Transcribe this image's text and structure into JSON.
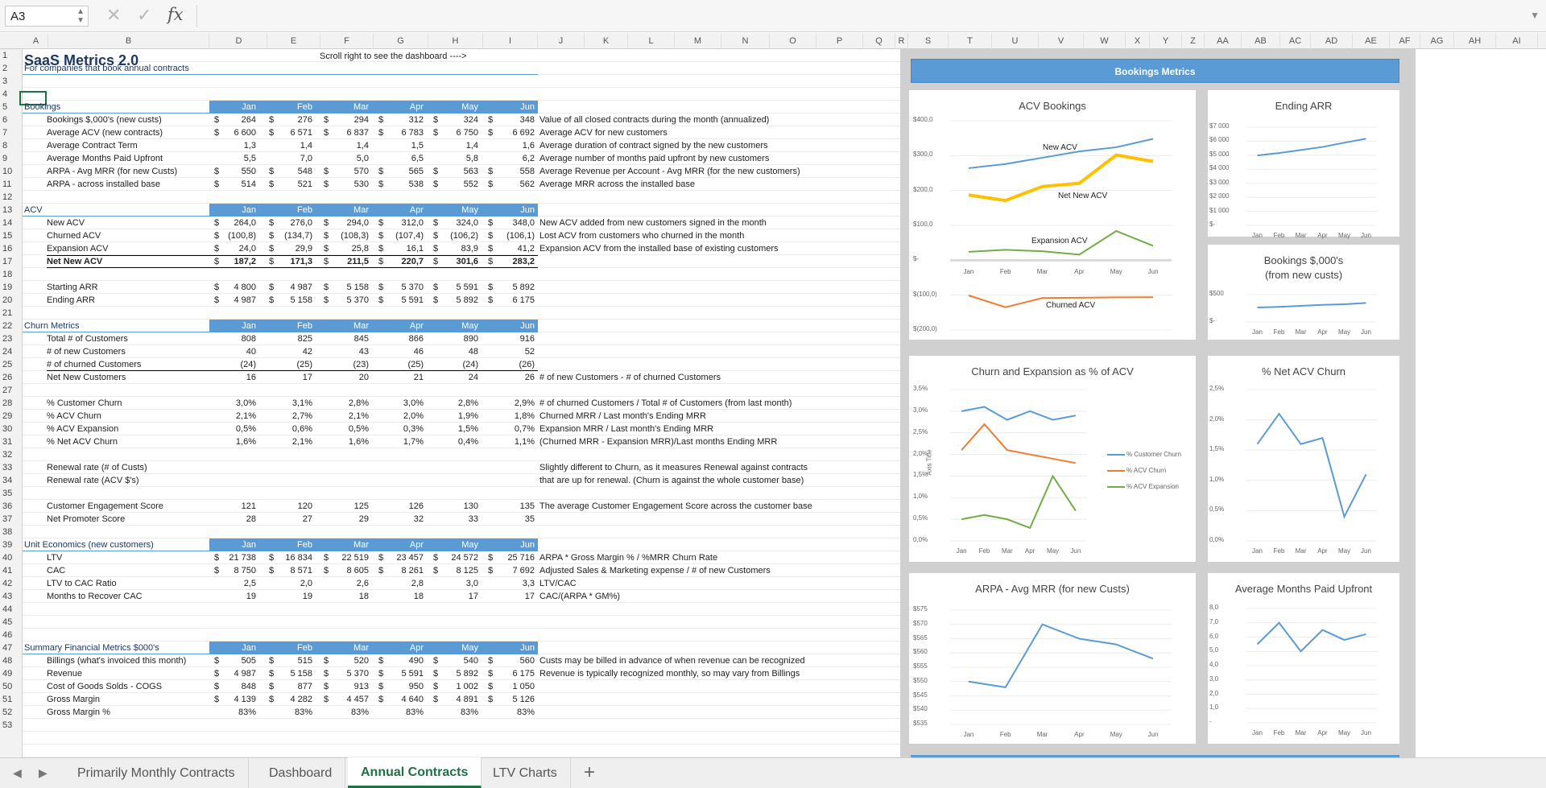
{
  "formula_bar": {
    "cell_ref": "A3",
    "fx_label": "fx",
    "formula": ""
  },
  "columns": [
    "A",
    "B",
    "D",
    "E",
    "F",
    "G",
    "H",
    "I",
    "J",
    "K",
    "L",
    "M",
    "N",
    "O",
    "P",
    "Q",
    "R",
    "S",
    "T",
    "U",
    "V",
    "W",
    "X",
    "Y",
    "Z",
    "AA",
    "AB",
    "AC",
    "AD",
    "AE",
    "AF",
    "AG",
    "AH",
    "AI"
  ],
  "rows": [
    "1",
    "2",
    "3",
    "4",
    "5",
    "6",
    "7",
    "8",
    "9",
    "10",
    "11",
    "12",
    "13",
    "14",
    "15",
    "16",
    "17",
    "18",
    "19",
    "20",
    "21",
    "22",
    "23",
    "24",
    "25",
    "26",
    "27",
    "28",
    "29",
    "30",
    "31",
    "32",
    "33",
    "34",
    "35",
    "36",
    "37",
    "38",
    "39",
    "40",
    "41",
    "42",
    "43",
    "44",
    "45",
    "46",
    "47",
    "48",
    "49",
    "50",
    "51",
    "52",
    "53"
  ],
  "sheet": {
    "title": "SaaS Metrics 2.0",
    "subtitle": "For companies that book annual contracts",
    "scroll_note": "Scroll right to see the dashboard ---->",
    "months": [
      "Jan",
      "Feb",
      "Mar",
      "Apr",
      "May",
      "Jun"
    ],
    "sections": [
      {
        "row": 5,
        "label": "Bookings",
        "items": [
          {
            "row": 6,
            "label": "Bookings $,000's (new custs)",
            "dollar": true,
            "values": [
              "264",
              "276",
              "294",
              "312",
              "324",
              "348"
            ],
            "note": "Value of all closed contracts during the month (annualized)"
          },
          {
            "row": 7,
            "label": "Average ACV (new contracts)",
            "dollar": true,
            "values": [
              "6 600",
              "6 571",
              "6 837",
              "6 783",
              "6 750",
              "6 692"
            ],
            "note": "Average ACV for new customers"
          },
          {
            "row": 8,
            "label": "Average Contract Term",
            "dollar": false,
            "values": [
              "1,3",
              "1,4",
              "1,4",
              "1,5",
              "1,4",
              "1,6"
            ],
            "note": "Average duration of contract signed by the new customers"
          },
          {
            "row": 9,
            "label": "Average Months Paid Upfront",
            "dollar": false,
            "values": [
              "5,5",
              "7,0",
              "5,0",
              "6,5",
              "5,8",
              "6,2"
            ],
            "note": "Average number of months paid upfront by new customers"
          },
          {
            "row": 10,
            "label": "ARPA - Avg MRR (for new Custs)",
            "dollar": true,
            "values": [
              "550",
              "548",
              "570",
              "565",
              "563",
              "558"
            ],
            "note": "Average Revenue per Account - Avg MRR (for the new customers)"
          },
          {
            "row": 11,
            "label": "ARPA - across installed base",
            "dollar": true,
            "values": [
              "514",
              "521",
              "530",
              "538",
              "552",
              "562"
            ],
            "note": "Average MRR across the installed base"
          }
        ]
      },
      {
        "row": 13,
        "label": "ACV",
        "items": [
          {
            "row": 14,
            "label": "New ACV",
            "dollar": true,
            "values": [
              "264,0",
              "276,0",
              "294,0",
              "312,0",
              "324,0",
              "348,0"
            ],
            "note": "New ACV added from new customers signed in the month"
          },
          {
            "row": 15,
            "label": "Churned ACV",
            "dollar": true,
            "values": [
              "(100,8)",
              "(134,7)",
              "(108,3)",
              "(107,4)",
              "(106,2)",
              "(106,1)"
            ],
            "note": "Lost ACV from customers who churned in the month"
          },
          {
            "row": 16,
            "label": "Expansion ACV",
            "dollar": true,
            "values": [
              "24,0",
              "29,9",
              "25,8",
              "16,1",
              "83,9",
              "41,2"
            ],
            "note": "Expansion ACV from the installed base of existing customers"
          },
          {
            "row": 17,
            "label": "Net New ACV",
            "dollar": true,
            "bold": true,
            "values": [
              "187,2",
              "171,3",
              "211,5",
              "220,7",
              "301,6",
              "283,2"
            ],
            "note": ""
          },
          {
            "row": 19,
            "label": "Starting ARR",
            "dollar": true,
            "values": [
              "4 800",
              "4 987",
              "5 158",
              "5 370",
              "5 591",
              "5 892"
            ],
            "note": ""
          },
          {
            "row": 20,
            "label": "Ending ARR",
            "dollar": true,
            "values": [
              "4 987",
              "5 158",
              "5 370",
              "5 591",
              "5 892",
              "6 175"
            ],
            "note": ""
          }
        ]
      },
      {
        "row": 22,
        "label": "Churn Metrics",
        "items": [
          {
            "row": 23,
            "label": "Total # of Customers",
            "dollar": false,
            "values": [
              "808",
              "825",
              "845",
              "866",
              "890",
              "916"
            ],
            "note": ""
          },
          {
            "row": 24,
            "label": "# of new Customers",
            "dollar": false,
            "values": [
              "40",
              "42",
              "43",
              "46",
              "48",
              "52"
            ],
            "note": ""
          },
          {
            "row": 25,
            "label": "# of churned Customers",
            "dollar": false,
            "values": [
              "(24)",
              "(25)",
              "(23)",
              "(25)",
              "(24)",
              "(26)"
            ],
            "note": ""
          },
          {
            "row": 26,
            "label": "Net New Customers",
            "dollar": false,
            "values": [
              "16",
              "17",
              "20",
              "21",
              "24",
              "26"
            ],
            "note": "# of new Customers - # of churned Customers"
          },
          {
            "row": 28,
            "label": "% Customer Churn",
            "dollar": false,
            "values": [
              "3,0%",
              "3,1%",
              "2,8%",
              "3,0%",
              "2,8%",
              "2,9%"
            ],
            "note": "# of churned Customers / Total # of Customers (from last month)"
          },
          {
            "row": 29,
            "label": "% ACV Churn",
            "dollar": false,
            "values": [
              "2,1%",
              "2,7%",
              "2,1%",
              "2,0%",
              "1,9%",
              "1,8%"
            ],
            "note": "Churned MRR / Last month's Ending MRR"
          },
          {
            "row": 30,
            "label": "% ACV Expansion",
            "dollar": false,
            "values": [
              "0,5%",
              "0,6%",
              "0,5%",
              "0,3%",
              "1,5%",
              "0,7%"
            ],
            "note": "Expansion MRR / Last month's Ending MRR"
          },
          {
            "row": 31,
            "label": "% Net ACV Churn",
            "dollar": false,
            "values": [
              "1,6%",
              "2,1%",
              "1,6%",
              "1,7%",
              "0,4%",
              "1,1%"
            ],
            "note": "(Churned MRR - Expansion MRR)/Last months Ending MRR"
          },
          {
            "row": 33,
            "label": "Renewal rate (# of Custs)",
            "dollar": false,
            "values": [
              "",
              "",
              "",
              "",
              "",
              ""
            ],
            "note": "Slightly different to Churn, as it measures Renewal against contracts"
          },
          {
            "row": 34,
            "label": "Renewal rate (ACV $'s)",
            "dollar": false,
            "values": [
              "",
              "",
              "",
              "",
              "",
              ""
            ],
            "note": "that are up for renewal. (Churn is against the whole customer base)"
          },
          {
            "row": 36,
            "label": "Customer Engagement Score",
            "dollar": false,
            "values": [
              "121",
              "120",
              "125",
              "126",
              "130",
              "135"
            ],
            "note": "The average Customer Engagement Score across the customer base"
          },
          {
            "row": 37,
            "label": "Net Promoter Score",
            "dollar": false,
            "values": [
              "28",
              "27",
              "29",
              "32",
              "33",
              "35"
            ],
            "note": ""
          }
        ]
      },
      {
        "row": 39,
        "label": "Unit Economics (new customers)",
        "items": [
          {
            "row": 40,
            "label": "LTV",
            "dollar": true,
            "values": [
              "21 738",
              "16 834",
              "22 519",
              "23 457",
              "24 572",
              "25 716"
            ],
            "note": "ARPA * Gross Margin % / %MRR Churn Rate"
          },
          {
            "row": 41,
            "label": "CAC",
            "dollar": true,
            "values": [
              "8 750",
              "8 571",
              "8 605",
              "8 261",
              "8 125",
              "7 692"
            ],
            "note": "Adjusted Sales & Marketing expense / # of new Customers"
          },
          {
            "row": 42,
            "label": "LTV to CAC Ratio",
            "dollar": false,
            "values": [
              "2,5",
              "2,0",
              "2,6",
              "2,8",
              "3,0",
              "3,3"
            ],
            "note": "LTV/CAC"
          },
          {
            "row": 43,
            "label": "Months to Recover CAC",
            "dollar": false,
            "values": [
              "19",
              "19",
              "18",
              "18",
              "17",
              "17"
            ],
            "note": "CAC/(ARPA * GM%)"
          }
        ]
      },
      {
        "row": 47,
        "label": "Summary Financial Metrics $000's",
        "items": [
          {
            "row": 48,
            "label": "Billings (what's invoiced this month)",
            "dollar": true,
            "values": [
              "505",
              "515",
              "520",
              "490",
              "540",
              "560"
            ],
            "note": "Custs may be billed in advance of when revenue can be recognized"
          },
          {
            "row": 49,
            "label": "Revenue",
            "dollar": true,
            "values": [
              "4 987",
              "5 158",
              "5 370",
              "5 591",
              "5 892",
              "6 175"
            ],
            "note": "Revenue is typically recognized monthly, so may vary from Billings"
          },
          {
            "row": 50,
            "label": "Cost of Goods Solds - COGS",
            "dollar": true,
            "values": [
              "848",
              "877",
              "913",
              "950",
              "1 002",
              "1 050"
            ],
            "note": ""
          },
          {
            "row": 51,
            "label": "Gross Margin",
            "dollar": true,
            "values": [
              "4 139",
              "4 282",
              "4 457",
              "4 640",
              "4 891",
              "5 126"
            ],
            "note": ""
          },
          {
            "row": 52,
            "label": "Gross Margin %",
            "dollar": false,
            "values": [
              "83%",
              "83%",
              "83%",
              "83%",
              "83%",
              "83%"
            ],
            "note": ""
          }
        ]
      }
    ]
  },
  "dashboard": {
    "header": "Bookings Metrics",
    "currency_symbol": "$"
  },
  "chart_data": [
    {
      "type": "line",
      "title": "ACV Bookings",
      "categories": [
        "Jan",
        "Feb",
        "Mar",
        "Apr",
        "May",
        "Jun"
      ],
      "series": [
        {
          "name": "New ACV",
          "values": [
            264,
            276,
            294,
            312,
            324,
            348
          ],
          "color": "#5b9bd5"
        },
        {
          "name": "Net New ACV",
          "values": [
            187.2,
            171.3,
            211.5,
            220.7,
            301.6,
            283.2
          ],
          "color": "#ffc000"
        },
        {
          "name": "Expansion ACV",
          "values": [
            24,
            29.9,
            25.8,
            16.1,
            83.9,
            41.2
          ],
          "color": "#70ad47"
        },
        {
          "name": "Churned ACV",
          "values": [
            -100.8,
            -134.7,
            -108.3,
            -107.4,
            -106.2,
            -106.1
          ],
          "color": "#ed7d31"
        }
      ],
      "ylim": [
        -200,
        400
      ],
      "yticks": [
        "$400,0",
        "$300,0",
        "$200,0",
        "$100,0",
        "$-",
        "$(100,0)",
        "$(200,0)"
      ]
    },
    {
      "type": "line",
      "title": "Ending ARR",
      "categories": [
        "Jan",
        "Feb",
        "Mar",
        "Apr",
        "May",
        "Jun"
      ],
      "series": [
        {
          "values": [
            4987,
            5158,
            5370,
            5591,
            5892,
            6175
          ],
          "color": "#5b9bd5"
        }
      ],
      "ylim": [
        0,
        7000
      ],
      "yticks": [
        "$7 000",
        "$6 000",
        "$5 000",
        "$4 000",
        "$3 000",
        "$2 000",
        "$1 000",
        "$-"
      ]
    },
    {
      "type": "line",
      "title": "Bookings $,000's",
      "subtitle": "(from new custs)",
      "categories": [
        "Jan",
        "Feb",
        "Mar",
        "Apr",
        "May",
        "Jun"
      ],
      "series": [
        {
          "values": [
            264,
            276,
            294,
            312,
            324,
            348
          ],
          "color": "#5b9bd5"
        }
      ],
      "ylim": [
        0,
        500
      ],
      "yticks": [
        "$500",
        "$-"
      ]
    },
    {
      "type": "line",
      "title": "Churn and Expansion as % of ACV",
      "ylabel": "Axis Title",
      "categories": [
        "Jan",
        "Feb",
        "Mar",
        "Apr",
        "May",
        "Jun"
      ],
      "series": [
        {
          "name": "% Customer Churn",
          "values": [
            3.0,
            3.1,
            2.8,
            3.0,
            2.8,
            2.9
          ],
          "color": "#5b9bd5"
        },
        {
          "name": "% ACV Churn",
          "values": [
            2.1,
            2.7,
            2.1,
            2.0,
            1.9,
            1.8
          ],
          "color": "#ed7d31"
        },
        {
          "name": "% ACV Expansion",
          "values": [
            0.5,
            0.6,
            0.5,
            0.3,
            1.5,
            0.7
          ],
          "color": "#70ad47"
        }
      ],
      "ylim": [
        0,
        3.5
      ],
      "yticks": [
        "3,5%",
        "3,0%",
        "2,5%",
        "2,0%",
        "1,5%",
        "1,0%",
        "0,5%",
        "0,0%"
      ],
      "legend": "right"
    },
    {
      "type": "line",
      "title": "% Net ACV Churn",
      "categories": [
        "Jan",
        "Feb",
        "Mar",
        "Apr",
        "May",
        "Jun"
      ],
      "series": [
        {
          "values": [
            1.6,
            2.1,
            1.6,
            1.7,
            0.4,
            1.1
          ],
          "color": "#5b9bd5"
        }
      ],
      "ylim": [
        0,
        2.5
      ],
      "yticks": [
        "2,5%",
        "2,0%",
        "1,5%",
        "1,0%",
        "0,5%",
        "0,0%"
      ]
    },
    {
      "type": "line",
      "title": "ARPA - Avg MRR (for new Custs)",
      "categories": [
        "Jan",
        "Feb",
        "Mar",
        "Apr",
        "May",
        "Jun"
      ],
      "series": [
        {
          "values": [
            550,
            548,
            570,
            565,
            563,
            558
          ],
          "color": "#5b9bd5"
        }
      ],
      "ylim": [
        535,
        575
      ],
      "yticks": [
        "$575",
        "$570",
        "$565",
        "$560",
        "$555",
        "$550",
        "$545",
        "$540",
        "$535"
      ]
    },
    {
      "type": "line",
      "title": "Average Months Paid Upfront",
      "categories": [
        "Jan",
        "Feb",
        "Mar",
        "Apr",
        "May",
        "Jun"
      ],
      "series": [
        {
          "values": [
            5.5,
            7.0,
            5.0,
            6.5,
            5.8,
            6.2
          ],
          "color": "#5b9bd5"
        }
      ],
      "ylim": [
        0,
        8
      ],
      "yticks": [
        "8,0",
        "7,0",
        "6,0",
        "5,0",
        "4,0",
        "3,0",
        "2,0",
        "1,0",
        "-"
      ]
    }
  ],
  "tabs": [
    {
      "label": "Primarily Monthly Contracts"
    },
    {
      "label": "Dashboard"
    },
    {
      "label": "Annual Contracts",
      "active": true
    },
    {
      "label": "LTV Charts"
    }
  ],
  "add_tab": "+",
  "nav_prev": "◀",
  "nav_next": "▶"
}
